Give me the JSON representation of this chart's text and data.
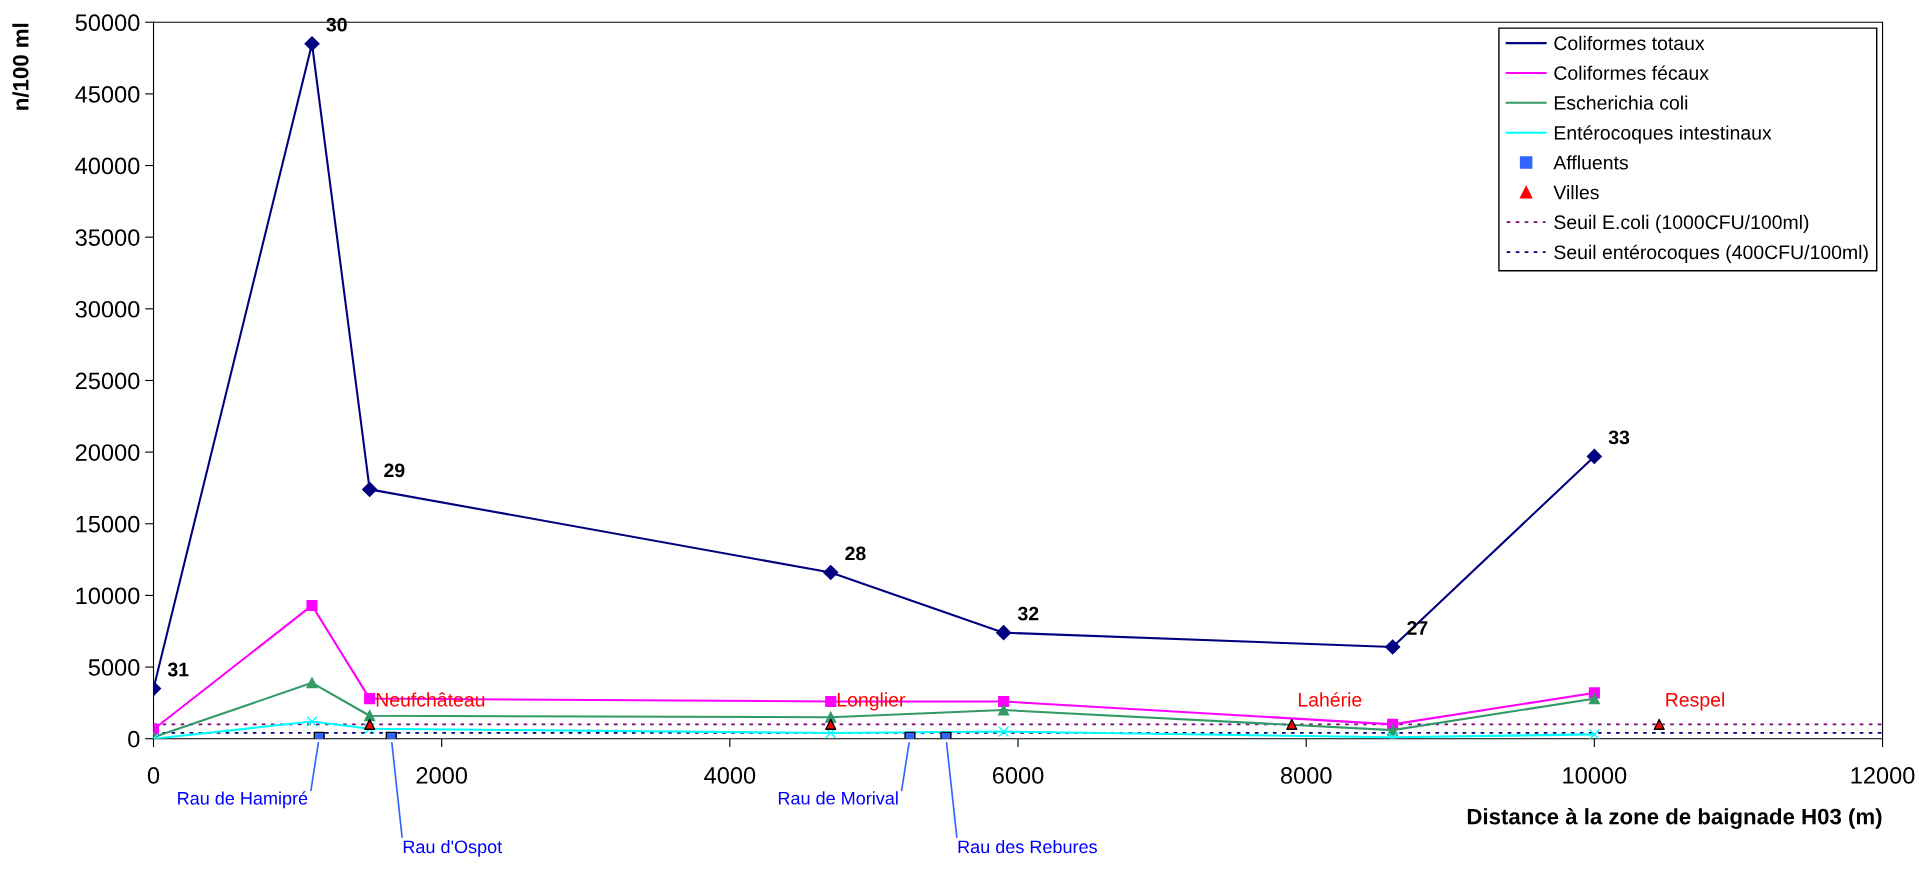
{
  "chart_data": {
    "type": "line",
    "xlabel": "Distance à la zone de baignade H03 (m)",
    "ylabel": "n/100 ml",
    "xlim": [
      0,
      12000
    ],
    "xticks": [
      0,
      2000,
      4000,
      6000,
      8000,
      10000,
      12000
    ],
    "ylim": [
      0,
      50000
    ],
    "yticks": [
      0,
      5000,
      10000,
      15000,
      20000,
      25000,
      30000,
      35000,
      40000,
      45000,
      50000
    ],
    "grid": false,
    "legend": "top right",
    "annotations": [
      {
        "text": "31",
        "x": 0,
        "y": 3500
      },
      {
        "text": "30",
        "x": 1100,
        "y": 48500
      },
      {
        "text": "29",
        "x": 1500,
        "y": 17400
      },
      {
        "text": "28",
        "x": 4700,
        "y": 11600
      },
      {
        "text": "32",
        "x": 5900,
        "y": 7400
      },
      {
        "text": "27",
        "x": 8600,
        "y": 6400
      },
      {
        "text": "33",
        "x": 10000,
        "y": 19700
      }
    ],
    "series": [
      {
        "name": "Coliformes totaux",
        "color": "#000080",
        "marker": "diamond",
        "x": [
          0,
          1100,
          1500,
          4700,
          5900,
          8600,
          10000
        ],
        "values": [
          3500,
          48500,
          17400,
          11600,
          7400,
          6400,
          19700
        ]
      },
      {
        "name": "Coliformes fécaux",
        "color": "#ff00ff",
        "marker": "square",
        "x": [
          0,
          1100,
          1500,
          4700,
          5900,
          8600,
          10000
        ],
        "values": [
          650,
          9300,
          2800,
          2600,
          2600,
          1000,
          3200
        ]
      },
      {
        "name": "Escherichia coli",
        "color": "#339966",
        "marker": "triangle",
        "x": [
          0,
          1100,
          1500,
          4700,
          5900,
          8600,
          10000
        ],
        "values": [
          100,
          3900,
          1600,
          1500,
          2000,
          600,
          2800
        ]
      },
      {
        "name": "Entérocoques intestinaux",
        "color": "#00ffff",
        "marker": "cross",
        "x": [
          0,
          1100,
          1500,
          4700,
          5900,
          8600,
          10000
        ],
        "values": [
          0,
          1200,
          700,
          400,
          500,
          100,
          300
        ]
      },
      {
        "name": "Affluents",
        "type": "scatter",
        "color": "#3366ff",
        "marker": "square",
        "x": [
          1150,
          1650,
          5250,
          5500
        ],
        "values": [
          100,
          100,
          100,
          100
        ],
        "value_labels": [
          "Rau de Hamipré",
          "Rau d'Ospot",
          "Rau de Morival",
          "Rau des Rebures"
        ]
      },
      {
        "name": "Villes",
        "type": "scatter",
        "color": "#ff0000",
        "marker": "triangle",
        "x": [
          1500,
          4700,
          7900,
          10450
        ],
        "values": [
          1000,
          1000,
          1000,
          1000
        ],
        "value_labels": [
          "Neufchâteau",
          "Longlier",
          "Lahérie",
          "Respel"
        ]
      }
    ],
    "ref_lines": [
      {
        "axis": "y",
        "value": 1000,
        "label": "Seuil E.coli (1000CFU/100ml)",
        "color": "#800080",
        "line_style": "dotted"
      },
      {
        "axis": "y",
        "value": 400,
        "label": "Seuil entérocoques (400CFU/100ml)",
        "color": "#000080",
        "line_style": "dotted"
      }
    ]
  }
}
